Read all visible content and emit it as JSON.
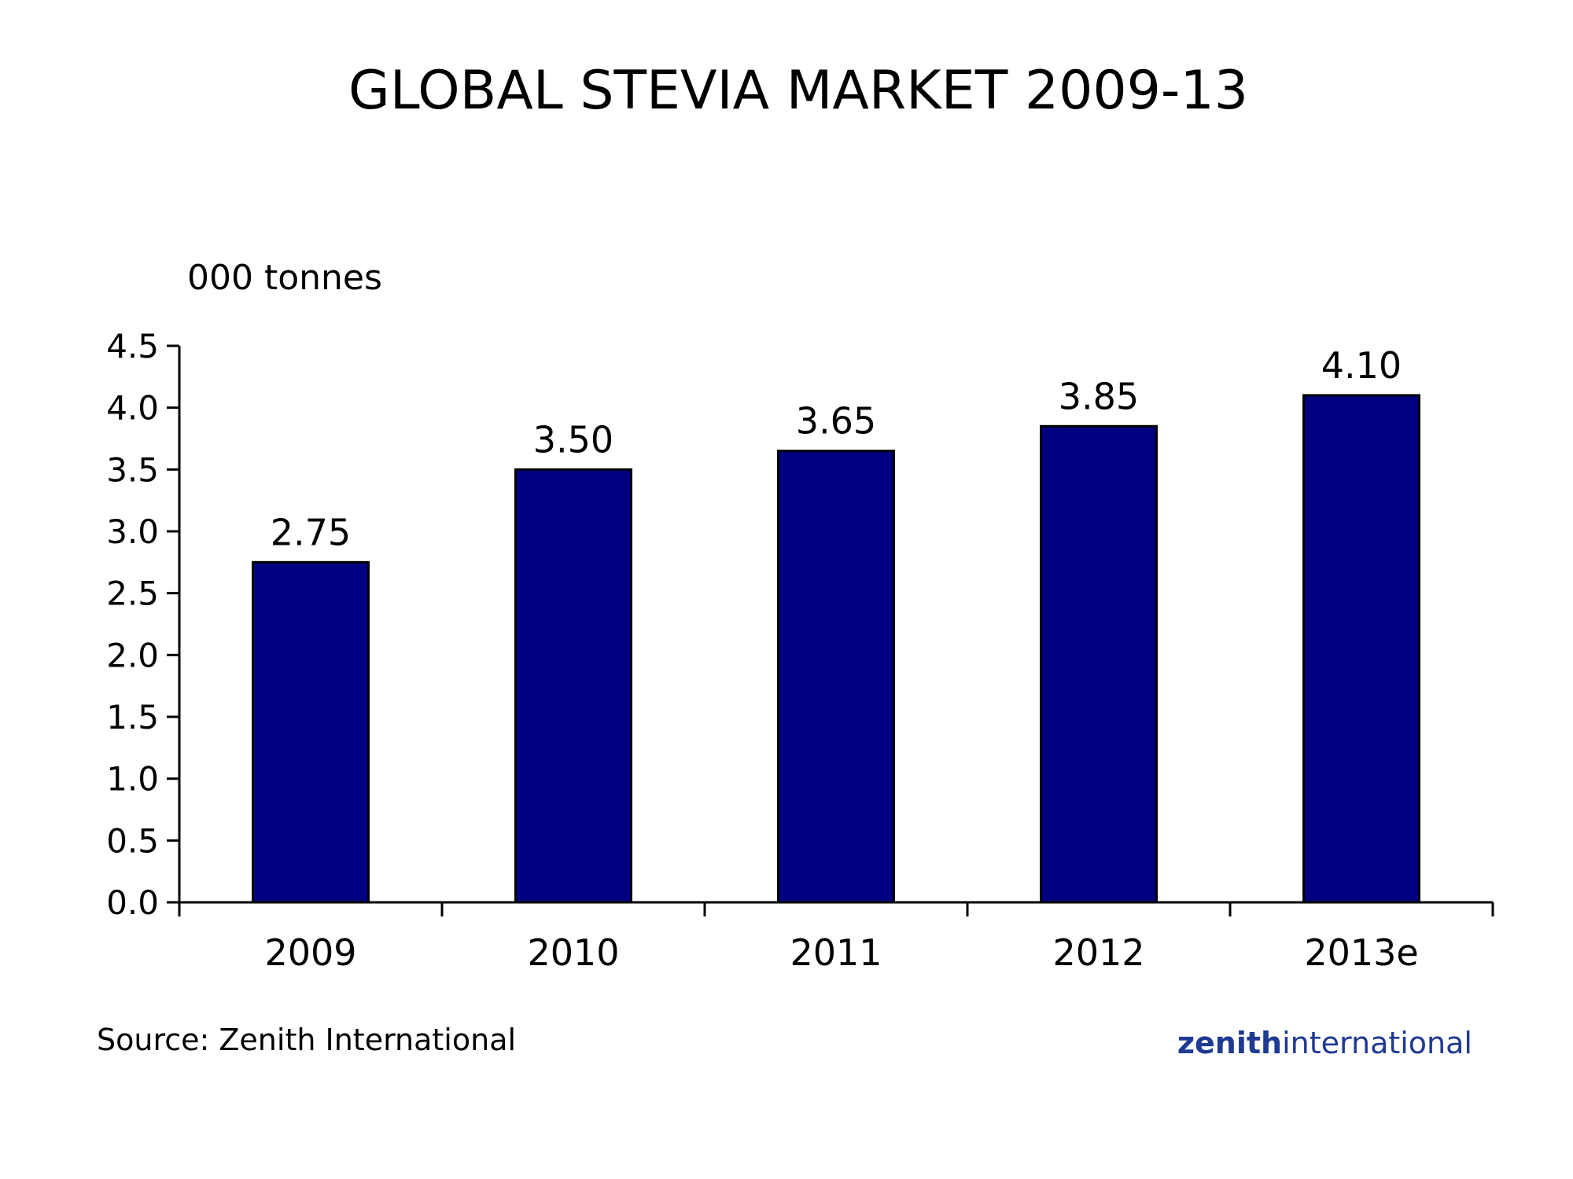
{
  "chart_data": {
    "type": "bar",
    "title": "GLOBAL STEVIA MARKET 2009-13",
    "unit_label": "000 tonnes",
    "categories": [
      "2009",
      "2010",
      "2011",
      "2012",
      "2013e"
    ],
    "values": [
      2.75,
      3.5,
      3.65,
      3.85,
      4.1
    ],
    "data_labels": [
      "2.75",
      "3.50",
      "3.65",
      "3.85",
      "4.10"
    ],
    "ylim": [
      0,
      4.5
    ],
    "yticks": [
      0.0,
      0.5,
      1.0,
      1.5,
      2.0,
      2.5,
      3.0,
      3.5,
      4.0,
      4.5
    ],
    "ytick_labels": [
      "0.0",
      "0.5",
      "1.0",
      "1.5",
      "2.0",
      "2.5",
      "3.0",
      "3.5",
      "4.0",
      "4.5"
    ],
    "grid": false,
    "legend": "none",
    "bar_color": "#000080"
  },
  "footer": {
    "source": "Source: Zenith International",
    "brand_bold": "zenith",
    "brand_light": "international",
    "brand_color": "#1F3A93"
  }
}
